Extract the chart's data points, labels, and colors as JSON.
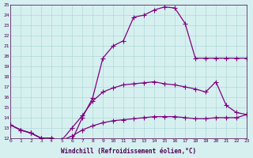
{
  "xlabel": "Windchill (Refroidissement éolien,°C)",
  "ylabel": "",
  "bg_color": "#d6f0f0",
  "line_color": "#800080",
  "grid_color": "#b0d8d8",
  "xmin": 0,
  "xmax": 23,
  "ymin": 12,
  "ymax": 25,
  "line1_x": [
    0,
    1,
    2,
    3,
    4,
    5,
    6,
    7,
    8,
    9,
    10,
    11,
    12,
    13,
    14,
    15,
    16,
    17,
    18,
    19,
    20,
    21,
    22,
    23
  ],
  "line1_y": [
    13.3,
    12.8,
    12.5,
    12.0,
    12.0,
    11.8,
    11.8,
    14.0,
    15.9,
    19.8,
    21.0,
    21.5,
    23.8,
    24.0,
    24.5,
    24.8,
    24.7,
    23.2,
    19.8,
    19.8,
    19.8,
    19.8,
    19.8,
    19.8
  ],
  "line2_x": [
    0,
    1,
    2,
    3,
    4,
    5,
    6,
    7,
    8,
    9,
    10,
    11,
    12,
    13,
    14,
    15,
    16,
    17,
    18,
    19,
    20,
    21,
    22,
    23
  ],
  "line2_y": [
    13.3,
    12.8,
    12.5,
    12.0,
    12.0,
    11.8,
    13.0,
    14.2,
    15.6,
    16.5,
    16.9,
    17.2,
    17.3,
    17.4,
    17.5,
    17.3,
    17.2,
    17.0,
    16.8,
    16.5,
    17.5,
    15.2,
    14.5,
    14.3
  ],
  "line3_x": [
    0,
    1,
    2,
    3,
    4,
    5,
    6,
    7,
    8,
    9,
    10,
    11,
    12,
    13,
    14,
    15,
    16,
    17,
    18,
    19,
    20,
    21,
    22,
    23
  ],
  "line3_y": [
    13.3,
    12.8,
    12.5,
    12.0,
    12.0,
    11.8,
    12.2,
    12.8,
    13.2,
    13.5,
    13.7,
    13.8,
    13.9,
    14.0,
    14.1,
    14.1,
    14.1,
    14.0,
    13.9,
    13.9,
    14.0,
    14.0,
    14.0,
    14.3
  ]
}
